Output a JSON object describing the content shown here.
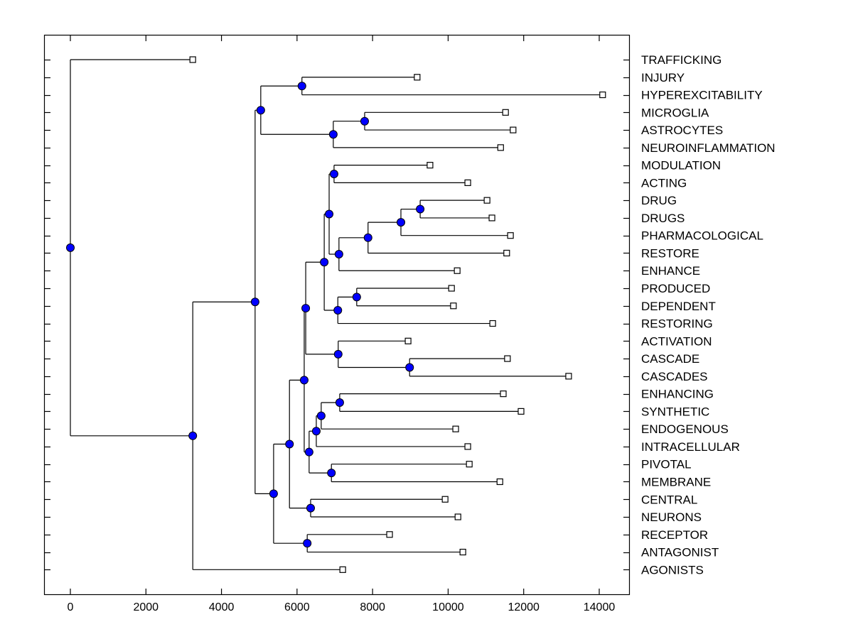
{
  "chart_data": {
    "type": "dendrogram",
    "title": "",
    "xlabel": "",
    "ylabel": "",
    "xlim": [
      -700,
      15000
    ],
    "xticks": [
      0,
      2000,
      4000,
      6000,
      8000,
      10000,
      12000,
      14000
    ],
    "xtick_labels": [
      "0",
      "2000",
      "4000",
      "6000",
      "8000",
      "10000",
      "12000",
      "14000"
    ],
    "grid": false,
    "colors": {
      "node_fill": "#0000ff",
      "leaf_fill": "#ffffff",
      "line": "#000000"
    },
    "leaves": [
      {
        "label": "TRAFFICKING",
        "value": 3240
      },
      {
        "label": "INJURY",
        "value": 9180
      },
      {
        "label": "HYPEREXCITABILITY",
        "value": 14090
      },
      {
        "label": "MICROGLIA",
        "value": 11520
      },
      {
        "label": "ASTROCYTES",
        "value": 11720
      },
      {
        "label": "NEUROINFLAMMATION",
        "value": 11390
      },
      {
        "label": "MODULATION",
        "value": 9520
      },
      {
        "label": "ACTING",
        "value": 10520
      },
      {
        "label": "DRUG",
        "value": 11030
      },
      {
        "label": "DRUGS",
        "value": 11160
      },
      {
        "label": "PHARMACOLOGICAL",
        "value": 11650
      },
      {
        "label": "RESTORE",
        "value": 11550
      },
      {
        "label": "ENHANCE",
        "value": 10240
      },
      {
        "label": "PRODUCED",
        "value": 10090
      },
      {
        "label": "DEPENDENT",
        "value": 10140
      },
      {
        "label": "RESTORING",
        "value": 11180
      },
      {
        "label": "ACTIVATION",
        "value": 8940
      },
      {
        "label": "CASCADE",
        "value": 11570
      },
      {
        "label": "CASCADES",
        "value": 13190
      },
      {
        "label": "ENHANCING",
        "value": 11460
      },
      {
        "label": "SYNTHETIC",
        "value": 11930
      },
      {
        "label": "ENDOGENOUS",
        "value": 10200
      },
      {
        "label": "INTRACELLULAR",
        "value": 10520
      },
      {
        "label": "PIVOTAL",
        "value": 10560
      },
      {
        "label": "MEMBRANE",
        "value": 11370
      },
      {
        "label": "CENTRAL",
        "value": 9920
      },
      {
        "label": "NEURONS",
        "value": 10260
      },
      {
        "label": "RECEPTOR",
        "value": 8450
      },
      {
        "label": "ANTAGONIST",
        "value": 10390
      },
      {
        "label": "AGONISTS",
        "value": 7210
      }
    ],
    "nodes": [
      {
        "id": "root",
        "value": 0,
        "children": [
          "TRAFFICKING",
          "n_a"
        ]
      },
      {
        "id": "n_a",
        "value": 3240,
        "children": [
          "n_b",
          "AGONISTS"
        ]
      },
      {
        "id": "n_b",
        "value": 4890,
        "children": [
          "n_c",
          "n_j"
        ]
      },
      {
        "id": "n_c",
        "value": 5040,
        "children": [
          "n_d",
          "n_e"
        ]
      },
      {
        "id": "n_d",
        "value": 6130,
        "children": [
          "INJURY",
          "HYPEREXCITABILITY"
        ]
      },
      {
        "id": "n_e",
        "value": 6960,
        "children": [
          "n_f",
          "NEUROINFLAMMATION"
        ]
      },
      {
        "id": "n_f",
        "value": 7790,
        "children": [
          "MICROGLIA",
          "ASTROCYTES"
        ]
      },
      {
        "id": "n_j",
        "value": 5380,
        "children": [
          "n_k",
          "n_rc"
        ]
      },
      {
        "id": "n_k",
        "value": 5800,
        "children": [
          "n_l",
          "n_cn"
        ]
      },
      {
        "id": "n_l",
        "value": 6190,
        "children": [
          "n_m",
          "n_s"
        ]
      },
      {
        "id": "n_m",
        "value": 6230,
        "children": [
          "n_n",
          "n_ac"
        ]
      },
      {
        "id": "n_n",
        "value": 6720,
        "children": [
          "n_o",
          "n_pd"
        ]
      },
      {
        "id": "n_o",
        "value": 6850,
        "children": [
          "n_ma",
          "n_p"
        ]
      },
      {
        "id": "n_ma",
        "value": 6980,
        "children": [
          "MODULATION",
          "ACTING"
        ]
      },
      {
        "id": "n_p",
        "value": 7110,
        "children": [
          "n_q",
          "ENHANCE"
        ]
      },
      {
        "id": "n_q",
        "value": 7880,
        "children": [
          "n_r",
          "RESTORE"
        ]
      },
      {
        "id": "n_r",
        "value": 8750,
        "children": [
          "n_dd",
          "PHARMACOLOGICAL"
        ]
      },
      {
        "id": "n_dd",
        "value": 9260,
        "children": [
          "DRUG",
          "DRUGS"
        ]
      },
      {
        "id": "n_pd",
        "value": 7080,
        "children": [
          "n_pd2",
          "RESTORING"
        ]
      },
      {
        "id": "n_pd2",
        "value": 7580,
        "children": [
          "PRODUCED",
          "DEPENDENT"
        ]
      },
      {
        "id": "n_ac",
        "value": 7090,
        "children": [
          "ACTIVATION",
          "n_cc"
        ]
      },
      {
        "id": "n_cc",
        "value": 8980,
        "children": [
          "CASCADE",
          "CASCADES"
        ]
      },
      {
        "id": "n_s",
        "value": 6320,
        "children": [
          "n_t",
          "n_pm"
        ]
      },
      {
        "id": "n_t",
        "value": 6510,
        "children": [
          "n_u",
          "INTRACELLULAR"
        ]
      },
      {
        "id": "n_u",
        "value": 6640,
        "children": [
          "n_es",
          "ENDOGENOUS"
        ]
      },
      {
        "id": "n_es",
        "value": 7130,
        "children": [
          "ENHANCING",
          "SYNTHETIC"
        ]
      },
      {
        "id": "n_pm",
        "value": 6910,
        "children": [
          "PIVOTAL",
          "MEMBRANE"
        ]
      },
      {
        "id": "n_cn",
        "value": 6360,
        "children": [
          "CENTRAL",
          "NEURONS"
        ]
      },
      {
        "id": "n_rc",
        "value": 6270,
        "children": [
          "RECEPTOR",
          "ANTAGONIST"
        ]
      }
    ]
  }
}
